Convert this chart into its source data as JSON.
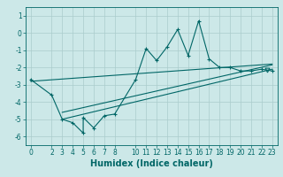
{
  "xlabel": "Humidex (Indice chaleur)",
  "bg_color": "#cce8e8",
  "grid_color": "#aacccc",
  "line_color": "#006666",
  "x_data": [
    0,
    2,
    3,
    4,
    5,
    5,
    6,
    7,
    8,
    10,
    11,
    12,
    13,
    14,
    15,
    16,
    17,
    18,
    19,
    20,
    21,
    22,
    23
  ],
  "y_data": [
    -2.7,
    -3.6,
    -5.0,
    -5.2,
    -5.8,
    -4.9,
    -5.5,
    -4.8,
    -4.7,
    -2.7,
    -0.9,
    -1.6,
    -0.8,
    0.2,
    -1.3,
    0.7,
    -1.5,
    -2.0,
    -2.0,
    -2.2,
    -2.2,
    -2.1,
    -2.2
  ],
  "trend1_x": [
    0,
    23
  ],
  "trend1_y": [
    -2.8,
    -1.8
  ],
  "trend2_x": [
    3,
    23
  ],
  "trend2_y": [
    -4.6,
    -1.85
  ],
  "trend3_x": [
    3,
    23
  ],
  "trend3_y": [
    -5.0,
    -2.1
  ],
  "triangle_x": [
    22.5
  ],
  "triangle_y": [
    -2.15
  ],
  "ylim": [
    -6.5,
    1.5
  ],
  "xlim": [
    -0.5,
    23.5
  ],
  "yticks": [
    1,
    0,
    -1,
    -2,
    -3,
    -4,
    -5,
    -6
  ],
  "xticks": [
    0,
    2,
    3,
    4,
    5,
    6,
    7,
    8,
    10,
    11,
    12,
    13,
    14,
    15,
    16,
    17,
    18,
    19,
    20,
    21,
    22,
    23
  ],
  "tick_fontsize": 5.5,
  "xlabel_fontsize": 7
}
